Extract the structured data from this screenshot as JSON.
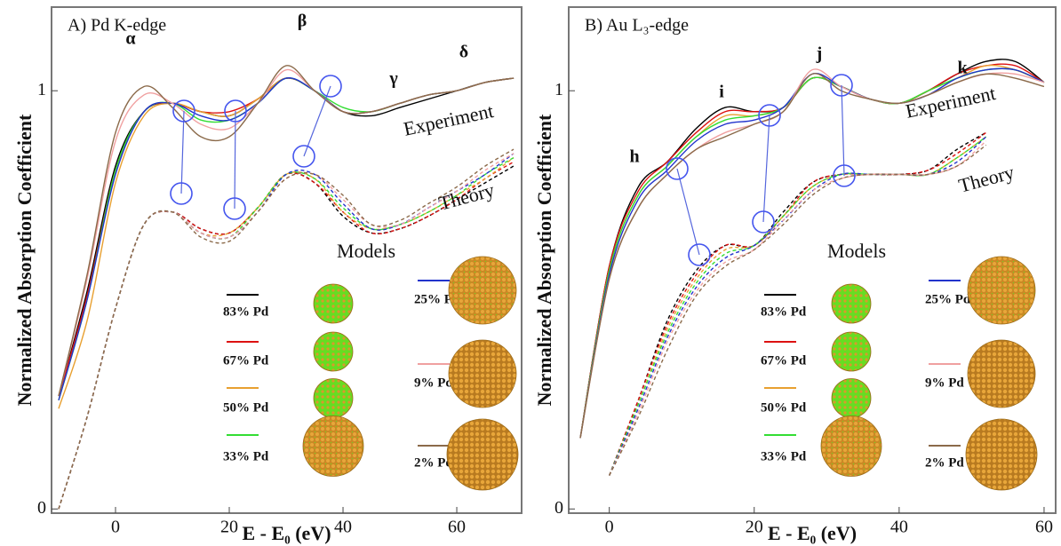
{
  "chart_data": [
    {
      "type": "line",
      "title": "A) Pd K-edge",
      "xlabel": "E - E₀ (eV)",
      "ylabel": "Normalized Absorption Coefficient",
      "x": [
        -10,
        -5,
        0,
        5,
        10,
        15,
        20,
        25,
        30,
        35,
        40,
        45,
        50,
        55,
        60,
        65,
        70
      ],
      "xlim": [
        -11.25,
        71.4
      ],
      "ylim": [
        -0.01,
        1.2
      ],
      "xticks": [
        0,
        20,
        40,
        60
      ],
      "yticks": [
        0,
        1
      ],
      "annotations": [
        "α",
        "β",
        "γ",
        "δ"
      ],
      "experiment_label": "Experiment",
      "theory_label": "Theory",
      "legend_title": "Models",
      "series": [
        {
          "name": "83% Pd",
          "color": "#000000",
          "values": [
            0.27,
            0.52,
            0.82,
            0.95,
            0.97,
            0.95,
            0.94,
            0.98,
            1.03,
            1.0,
            0.95,
            0.94,
            0.96,
            0.98,
            1.0,
            1.02,
            1.03
          ],
          "theory": [
            0.0,
            0.22,
            0.48,
            0.68,
            0.71,
            0.67,
            0.66,
            0.72,
            0.8,
            0.78,
            0.7,
            0.66,
            0.67,
            0.7,
            0.74,
            0.78,
            0.82
          ]
        },
        {
          "name": "67% Pd",
          "color": "#dd1111",
          "values": [
            0.27,
            0.51,
            0.81,
            0.95,
            0.97,
            0.95,
            0.95,
            0.98,
            1.03,
            1.0,
            0.95,
            0.95,
            0.97,
            0.99,
            1.0,
            1.02,
            1.03
          ],
          "theory": [
            0.0,
            0.22,
            0.48,
            0.68,
            0.71,
            0.67,
            0.66,
            0.72,
            0.8,
            0.78,
            0.71,
            0.66,
            0.67,
            0.7,
            0.74,
            0.79,
            0.83
          ]
        },
        {
          "name": "50% Pd",
          "color": "#e8a030",
          "values": [
            0.24,
            0.45,
            0.78,
            0.94,
            0.97,
            0.95,
            0.94,
            0.98,
            1.03,
            1.0,
            0.95,
            0.95,
            0.97,
            0.99,
            1.0,
            1.02,
            1.03
          ],
          "theory": [
            0.0,
            0.22,
            0.48,
            0.68,
            0.71,
            0.66,
            0.66,
            0.72,
            0.8,
            0.79,
            0.71,
            0.67,
            0.68,
            0.71,
            0.75,
            0.79,
            0.84
          ]
        },
        {
          "name": "33% Pd",
          "color": "#33dd33",
          "values": [
            0.26,
            0.5,
            0.81,
            0.95,
            0.97,
            0.93,
            0.93,
            0.97,
            1.03,
            1.0,
            0.96,
            0.95,
            0.97,
            0.99,
            1.0,
            1.02,
            1.03
          ],
          "theory": [
            0.0,
            0.22,
            0.48,
            0.68,
            0.71,
            0.66,
            0.65,
            0.72,
            0.8,
            0.79,
            0.72,
            0.67,
            0.68,
            0.71,
            0.75,
            0.8,
            0.84
          ]
        },
        {
          "name": "25% Pd",
          "color": "#2233cc",
          "values": [
            0.26,
            0.5,
            0.8,
            0.95,
            0.97,
            0.94,
            0.93,
            0.97,
            1.03,
            1.0,
            0.95,
            0.95,
            0.97,
            0.99,
            1.0,
            1.02,
            1.03
          ],
          "theory": [
            0.0,
            0.22,
            0.48,
            0.68,
            0.71,
            0.66,
            0.65,
            0.71,
            0.8,
            0.8,
            0.73,
            0.67,
            0.68,
            0.72,
            0.76,
            0.8,
            0.85
          ]
        },
        {
          "name": "9% Pd",
          "color": "#f0a0a0",
          "values": [
            0.27,
            0.55,
            0.88,
            0.99,
            0.97,
            0.92,
            0.91,
            0.97,
            1.05,
            1.0,
            0.95,
            0.95,
            0.97,
            0.99,
            1.0,
            1.02,
            1.03
          ],
          "theory": [
            0.0,
            0.22,
            0.48,
            0.68,
            0.71,
            0.66,
            0.65,
            0.71,
            0.79,
            0.8,
            0.74,
            0.68,
            0.68,
            0.72,
            0.76,
            0.81,
            0.85
          ]
        },
        {
          "name": "2% Pd",
          "color": "#8b6a4a",
          "values": [
            0.27,
            0.56,
            0.9,
            1.01,
            0.96,
            0.89,
            0.89,
            0.97,
            1.06,
            1.0,
            0.95,
            0.95,
            0.97,
            0.99,
            1.0,
            1.02,
            1.03
          ],
          "theory": [
            0.0,
            0.22,
            0.48,
            0.68,
            0.71,
            0.65,
            0.64,
            0.71,
            0.79,
            0.8,
            0.75,
            0.68,
            0.69,
            0.73,
            0.77,
            0.82,
            0.86
          ]
        }
      ]
    },
    {
      "type": "line",
      "title": "B) Au L₃-edge",
      "xlabel": "E - E₀ (eV)",
      "ylabel": "Normalized Absorption Coefficient",
      "x": [
        -4,
        0,
        4,
        8,
        12,
        16,
        20,
        24,
        28,
        32,
        36,
        40,
        44,
        48,
        52,
        56,
        60
      ],
      "xlim": [
        -5.6,
        61.6
      ],
      "ylim": [
        -0.01,
        1.2
      ],
      "xticks": [
        0,
        20,
        40,
        60
      ],
      "yticks": [
        0,
        1
      ],
      "annotations": [
        "h",
        "i",
        "j",
        "k"
      ],
      "experiment_label": "Experiment",
      "theory_label": "Theory",
      "legend_title": "Models",
      "series": [
        {
          "name": "83% Pd",
          "color": "#000000",
          "values": [
            0.17,
            0.58,
            0.77,
            0.83,
            0.91,
            0.96,
            0.95,
            0.96,
            1.03,
            1.01,
            0.98,
            0.97,
            1.0,
            1.04,
            1.07,
            1.07,
            1.02
          ],
          "theory": [
            null,
            0.08,
            0.26,
            0.45,
            0.57,
            0.63,
            0.63,
            0.71,
            0.78,
            0.8,
            0.8,
            0.8,
            0.81,
            0.86,
            0.9,
            null,
            null
          ]
        },
        {
          "name": "67% Pd",
          "color": "#dd1111",
          "values": [
            0.17,
            0.58,
            0.76,
            0.83,
            0.9,
            0.95,
            0.95,
            0.96,
            1.03,
            1.01,
            0.98,
            0.97,
            1.0,
            1.04,
            1.06,
            1.06,
            1.02
          ],
          "theory": [
            null,
            0.08,
            0.26,
            0.44,
            0.56,
            0.63,
            0.63,
            0.7,
            0.78,
            0.8,
            0.8,
            0.8,
            0.81,
            0.85,
            0.9,
            null,
            null
          ]
        },
        {
          "name": "50% Pd",
          "color": "#e8a030",
          "values": [
            0.17,
            0.57,
            0.75,
            0.82,
            0.89,
            0.94,
            0.94,
            0.96,
            1.03,
            1.01,
            0.98,
            0.97,
            1.0,
            1.03,
            1.06,
            1.05,
            1.02
          ],
          "theory": [
            null,
            0.08,
            0.25,
            0.43,
            0.55,
            0.62,
            0.63,
            0.7,
            0.77,
            0.8,
            0.8,
            0.8,
            0.8,
            0.84,
            0.89,
            null,
            null
          ]
        },
        {
          "name": "33% Pd",
          "color": "#33dd33",
          "values": [
            0.17,
            0.57,
            0.75,
            0.82,
            0.89,
            0.93,
            0.94,
            0.96,
            1.03,
            1.01,
            0.98,
            0.97,
            1.0,
            1.03,
            1.05,
            1.05,
            1.02
          ],
          "theory": [
            null,
            0.08,
            0.25,
            0.42,
            0.54,
            0.61,
            0.63,
            0.7,
            0.77,
            0.8,
            0.8,
            0.8,
            0.8,
            0.84,
            0.89,
            null,
            null
          ]
        },
        {
          "name": "25% Pd",
          "color": "#2233cc",
          "values": [
            0.17,
            0.56,
            0.74,
            0.81,
            0.88,
            0.92,
            0.93,
            0.96,
            1.04,
            1.01,
            0.98,
            0.97,
            0.99,
            1.03,
            1.05,
            1.05,
            1.02
          ],
          "theory": [
            null,
            0.08,
            0.24,
            0.41,
            0.53,
            0.6,
            0.63,
            0.69,
            0.76,
            0.8,
            0.8,
            0.8,
            0.8,
            0.83,
            0.89,
            null,
            null
          ]
        },
        {
          "name": "9% Pd",
          "color": "#f0a0a0",
          "values": [
            0.17,
            0.55,
            0.72,
            0.8,
            0.86,
            0.9,
            0.92,
            0.95,
            1.05,
            1.01,
            0.98,
            0.97,
            0.99,
            1.02,
            1.04,
            1.04,
            1.02
          ],
          "theory": [
            null,
            0.08,
            0.23,
            0.4,
            0.52,
            0.59,
            0.62,
            0.69,
            0.76,
            0.79,
            0.8,
            0.8,
            0.8,
            0.82,
            0.88,
            null,
            null
          ]
        },
        {
          "name": "2% Pd",
          "color": "#8b6a4a",
          "values": [
            0.17,
            0.55,
            0.72,
            0.8,
            0.86,
            0.89,
            0.92,
            0.95,
            1.04,
            1.0,
            0.98,
            0.97,
            0.99,
            1.02,
            1.04,
            1.03,
            1.01
          ],
          "theory": [
            null,
            0.08,
            0.22,
            0.38,
            0.51,
            0.58,
            0.62,
            0.68,
            0.75,
            0.79,
            0.8,
            0.8,
            0.8,
            0.82,
            0.87,
            null,
            null
          ]
        }
      ]
    }
  ]
}
